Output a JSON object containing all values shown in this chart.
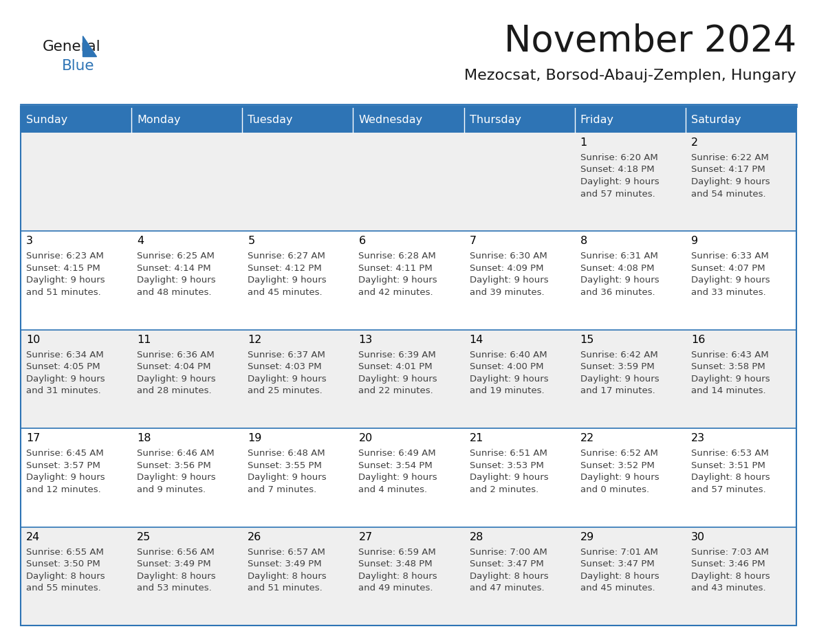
{
  "title": "November 2024",
  "subtitle": "Mezocsat, Borsod-Abauj-Zemplen, Hungary",
  "days_of_week": [
    "Sunday",
    "Monday",
    "Tuesday",
    "Wednesday",
    "Thursday",
    "Friday",
    "Saturday"
  ],
  "header_bg": "#2E74B5",
  "header_text_color": "#FFFFFF",
  "cell_bg_even": "#EFEFEF",
  "cell_bg_odd": "#FFFFFF",
  "cell_border_color": "#2E74B5",
  "day_number_color": "#000000",
  "info_text_color": "#404040",
  "logo_general_color": "#1a1a1a",
  "logo_blue_color": "#2E74B5",
  "calendar_data": [
    [
      null,
      null,
      null,
      null,
      null,
      {
        "day": "1",
        "sunrise": "6:20 AM",
        "sunset": "4:18 PM",
        "daylight1": "9 hours",
        "daylight2": "and 57 minutes."
      },
      {
        "day": "2",
        "sunrise": "6:22 AM",
        "sunset": "4:17 PM",
        "daylight1": "9 hours",
        "daylight2": "and 54 minutes."
      }
    ],
    [
      {
        "day": "3",
        "sunrise": "6:23 AM",
        "sunset": "4:15 PM",
        "daylight1": "9 hours",
        "daylight2": "and 51 minutes."
      },
      {
        "day": "4",
        "sunrise": "6:25 AM",
        "sunset": "4:14 PM",
        "daylight1": "9 hours",
        "daylight2": "and 48 minutes."
      },
      {
        "day": "5",
        "sunrise": "6:27 AM",
        "sunset": "4:12 PM",
        "daylight1": "9 hours",
        "daylight2": "and 45 minutes."
      },
      {
        "day": "6",
        "sunrise": "6:28 AM",
        "sunset": "4:11 PM",
        "daylight1": "9 hours",
        "daylight2": "and 42 minutes."
      },
      {
        "day": "7",
        "sunrise": "6:30 AM",
        "sunset": "4:09 PM",
        "daylight1": "9 hours",
        "daylight2": "and 39 minutes."
      },
      {
        "day": "8",
        "sunrise": "6:31 AM",
        "sunset": "4:08 PM",
        "daylight1": "9 hours",
        "daylight2": "and 36 minutes."
      },
      {
        "day": "9",
        "sunrise": "6:33 AM",
        "sunset": "4:07 PM",
        "daylight1": "9 hours",
        "daylight2": "and 33 minutes."
      }
    ],
    [
      {
        "day": "10",
        "sunrise": "6:34 AM",
        "sunset": "4:05 PM",
        "daylight1": "9 hours",
        "daylight2": "and 31 minutes."
      },
      {
        "day": "11",
        "sunrise": "6:36 AM",
        "sunset": "4:04 PM",
        "daylight1": "9 hours",
        "daylight2": "and 28 minutes."
      },
      {
        "day": "12",
        "sunrise": "6:37 AM",
        "sunset": "4:03 PM",
        "daylight1": "9 hours",
        "daylight2": "and 25 minutes."
      },
      {
        "day": "13",
        "sunrise": "6:39 AM",
        "sunset": "4:01 PM",
        "daylight1": "9 hours",
        "daylight2": "and 22 minutes."
      },
      {
        "day": "14",
        "sunrise": "6:40 AM",
        "sunset": "4:00 PM",
        "daylight1": "9 hours",
        "daylight2": "and 19 minutes."
      },
      {
        "day": "15",
        "sunrise": "6:42 AM",
        "sunset": "3:59 PM",
        "daylight1": "9 hours",
        "daylight2": "and 17 minutes."
      },
      {
        "day": "16",
        "sunrise": "6:43 AM",
        "sunset": "3:58 PM",
        "daylight1": "9 hours",
        "daylight2": "and 14 minutes."
      }
    ],
    [
      {
        "day": "17",
        "sunrise": "6:45 AM",
        "sunset": "3:57 PM",
        "daylight1": "9 hours",
        "daylight2": "and 12 minutes."
      },
      {
        "day": "18",
        "sunrise": "6:46 AM",
        "sunset": "3:56 PM",
        "daylight1": "9 hours",
        "daylight2": "and 9 minutes."
      },
      {
        "day": "19",
        "sunrise": "6:48 AM",
        "sunset": "3:55 PM",
        "daylight1": "9 hours",
        "daylight2": "and 7 minutes."
      },
      {
        "day": "20",
        "sunrise": "6:49 AM",
        "sunset": "3:54 PM",
        "daylight1": "9 hours",
        "daylight2": "and 4 minutes."
      },
      {
        "day": "21",
        "sunrise": "6:51 AM",
        "sunset": "3:53 PM",
        "daylight1": "9 hours",
        "daylight2": "and 2 minutes."
      },
      {
        "day": "22",
        "sunrise": "6:52 AM",
        "sunset": "3:52 PM",
        "daylight1": "9 hours",
        "daylight2": "and 0 minutes."
      },
      {
        "day": "23",
        "sunrise": "6:53 AM",
        "sunset": "3:51 PM",
        "daylight1": "8 hours",
        "daylight2": "and 57 minutes."
      }
    ],
    [
      {
        "day": "24",
        "sunrise": "6:55 AM",
        "sunset": "3:50 PM",
        "daylight1": "8 hours",
        "daylight2": "and 55 minutes."
      },
      {
        "day": "25",
        "sunrise": "6:56 AM",
        "sunset": "3:49 PM",
        "daylight1": "8 hours",
        "daylight2": "and 53 minutes."
      },
      {
        "day": "26",
        "sunrise": "6:57 AM",
        "sunset": "3:49 PM",
        "daylight1": "8 hours",
        "daylight2": "and 51 minutes."
      },
      {
        "day": "27",
        "sunrise": "6:59 AM",
        "sunset": "3:48 PM",
        "daylight1": "8 hours",
        "daylight2": "and 49 minutes."
      },
      {
        "day": "28",
        "sunrise": "7:00 AM",
        "sunset": "3:47 PM",
        "daylight1": "8 hours",
        "daylight2": "and 47 minutes."
      },
      {
        "day": "29",
        "sunrise": "7:01 AM",
        "sunset": "3:47 PM",
        "daylight1": "8 hours",
        "daylight2": "and 45 minutes."
      },
      {
        "day": "30",
        "sunrise": "7:03 AM",
        "sunset": "3:46 PM",
        "daylight1": "8 hours",
        "daylight2": "and 43 minutes."
      }
    ]
  ]
}
